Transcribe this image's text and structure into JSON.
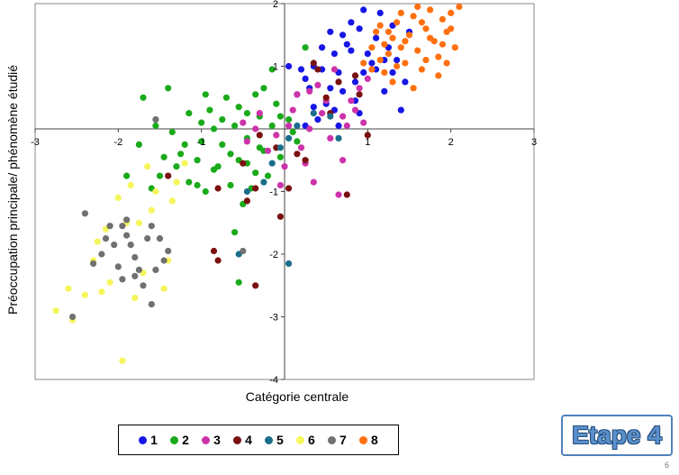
{
  "chart_data": {
    "type": "scatter",
    "xlabel": "Catégorie centrale",
    "ylabel": "Préoccupation principale/ phénomène étudié",
    "xlim": [
      -3,
      3
    ],
    "ylim": [
      -4,
      2
    ],
    "xticks": [
      -3,
      -2,
      -1,
      0,
      1,
      2,
      3
    ],
    "yticks": [
      -4,
      -3,
      -2,
      -1,
      0,
      1,
      2
    ],
    "xtick_labels": [
      "-3",
      "-2",
      "-1",
      "0",
      "1",
      "2",
      "3"
    ],
    "ytick_labels": [
      "-4",
      "-3",
      "-2",
      "-1",
      "0",
      "1",
      "2"
    ],
    "grid": false,
    "legend_position": "bottom",
    "series": [
      {
        "name": "1",
        "color": "#1616e6",
        "points": [
          [
            0.15,
            0.55
          ],
          [
            0.25,
            0.8
          ],
          [
            0.35,
            1.0
          ],
          [
            0.45,
            1.3
          ],
          [
            0.55,
            0.65
          ],
          [
            0.6,
            1.2
          ],
          [
            0.65,
            0.9
          ],
          [
            0.7,
            1.5
          ],
          [
            0.75,
            1.35
          ],
          [
            0.8,
            1.7
          ],
          [
            0.85,
            0.75
          ],
          [
            0.9,
            1.6
          ],
          [
            0.95,
            1.9
          ],
          [
            1.0,
            1.2
          ],
          [
            1.05,
            1.05
          ],
          [
            1.1,
            1.45
          ],
          [
            1.15,
            1.85
          ],
          [
            1.2,
            0.6
          ],
          [
            1.25,
            1.3
          ],
          [
            1.3,
            0.9
          ],
          [
            1.35,
            1.1
          ],
          [
            1.45,
            0.75
          ],
          [
            1.5,
            1.55
          ],
          [
            1.4,
            0.3
          ],
          [
            0.5,
            0.4
          ],
          [
            0.3,
            0.65
          ],
          [
            0.2,
            0.95
          ],
          [
            0.45,
            0.95
          ],
          [
            0.7,
            0.6
          ],
          [
            0.85,
            0.45
          ],
          [
            0.6,
            0.3
          ],
          [
            0.95,
            0.9
          ],
          [
            1.1,
            0.95
          ],
          [
            0.4,
            0.15
          ],
          [
            0.05,
            1.0
          ],
          [
            0.25,
            0.05
          ],
          [
            0.55,
            1.55
          ],
          [
            0.8,
            1.25
          ],
          [
            1.3,
            1.65
          ],
          [
            0.65,
            0.05
          ],
          [
            0.9,
            0.25
          ],
          [
            1.2,
            1.1
          ],
          [
            0.35,
            0.35
          ]
        ]
      },
      {
        "name": "2",
        "color": "#1aaa1a",
        "points": [
          [
            -1.9,
            -0.75
          ],
          [
            -1.6,
            -0.95
          ],
          [
            -1.45,
            -0.45
          ],
          [
            -1.35,
            -0.05
          ],
          [
            -1.25,
            -0.4
          ],
          [
            -1.15,
            -0.85
          ],
          [
            -1.05,
            -0.5
          ],
          [
            -1.0,
            -0.2
          ],
          [
            -0.95,
            -1.0
          ],
          [
            -0.85,
            -0.65
          ],
          [
            -0.75,
            -0.25
          ],
          [
            -0.65,
            -0.9
          ],
          [
            -0.55,
            -0.5
          ],
          [
            -0.45,
            -0.15
          ],
          [
            -0.35,
            -0.7
          ],
          [
            -0.25,
            -0.35
          ],
          [
            -0.15,
            0.05
          ],
          [
            -0.05,
            -0.45
          ],
          [
            0.05,
            0.15
          ],
          [
            0.15,
            -0.2
          ],
          [
            0.25,
            1.3
          ],
          [
            -0.15,
            0.95
          ],
          [
            -0.35,
            0.55
          ],
          [
            -0.55,
            0.35
          ],
          [
            -0.75,
            0.15
          ],
          [
            -0.95,
            0.55
          ],
          [
            -1.15,
            0.25
          ],
          [
            -0.85,
            0.0
          ],
          [
            -0.65,
            -0.4
          ],
          [
            -0.45,
            0.25
          ],
          [
            -1.55,
            0.05
          ],
          [
            -1.75,
            -0.25
          ],
          [
            -0.6,
            -1.65
          ],
          [
            -0.55,
            -2.45
          ],
          [
            -1.05,
            -0.9
          ],
          [
            -1.5,
            -0.75
          ],
          [
            -0.3,
            0.2
          ],
          [
            -0.2,
            -0.75
          ],
          [
            -0.9,
            0.3
          ],
          [
            -1.2,
            -0.25
          ],
          [
            -0.7,
            0.5
          ],
          [
            -0.5,
            -1.2
          ],
          [
            -1.4,
            0.65
          ],
          [
            -0.1,
            0.4
          ],
          [
            -0.4,
            -0.95
          ],
          [
            -0.8,
            -0.6
          ],
          [
            -1.7,
            0.5
          ],
          [
            -0.25,
            0.65
          ],
          [
            0.1,
            -0.05
          ],
          [
            -1.3,
            -0.6
          ],
          [
            -0.6,
            0.05
          ],
          [
            -1.0,
            0.1
          ],
          [
            -0.3,
            -0.3
          ],
          [
            -0.05,
            0.2
          ],
          [
            -0.45,
            -0.55
          ]
        ]
      },
      {
        "name": "3",
        "color": "#cc33aa",
        "points": [
          [
            -0.5,
            0.1
          ],
          [
            -0.3,
            0.25
          ],
          [
            -0.1,
            -0.1
          ],
          [
            0.1,
            0.3
          ],
          [
            0.3,
            0.0
          ],
          [
            0.5,
            0.45
          ],
          [
            0.7,
            0.2
          ],
          [
            0.9,
            0.65
          ],
          [
            0.2,
            -0.3
          ],
          [
            0.4,
            0.7
          ],
          [
            0.6,
            0.95
          ],
          [
            0.8,
            0.45
          ],
          [
            1.0,
            0.8
          ],
          [
            0.0,
            -0.6
          ],
          [
            -0.2,
            -0.35
          ],
          [
            0.25,
            -0.55
          ],
          [
            0.55,
            -0.15
          ],
          [
            0.75,
            0.05
          ],
          [
            0.35,
            -0.85
          ],
          [
            0.65,
            -1.05
          ],
          [
            0.15,
            0.55
          ],
          [
            -0.35,
            0.0
          ],
          [
            0.45,
            0.25
          ],
          [
            0.85,
            0.3
          ],
          [
            0.05,
            0.05
          ],
          [
            -0.05,
            -0.9
          ],
          [
            0.95,
            0.1
          ],
          [
            -0.45,
            -0.2
          ],
          [
            0.3,
            0.6
          ],
          [
            0.7,
            -0.5
          ]
        ]
      },
      {
        "name": "4",
        "color": "#7a1010",
        "points": [
          [
            -1.4,
            -0.75
          ],
          [
            -0.8,
            -0.95
          ],
          [
            -0.85,
            -1.95
          ],
          [
            -0.8,
            -2.1
          ],
          [
            -0.5,
            -0.55
          ],
          [
            -0.45,
            -1.15
          ],
          [
            -0.35,
            -0.95
          ],
          [
            -0.05,
            -1.4
          ],
          [
            0.25,
            -0.5
          ],
          [
            0.55,
            0.25
          ],
          [
            0.75,
            -1.05
          ],
          [
            0.9,
            0.55
          ],
          [
            1.0,
            -0.1
          ],
          [
            0.4,
            0.95
          ],
          [
            0.35,
            1.05
          ],
          [
            -0.35,
            -2.5
          ],
          [
            -0.1,
            -0.3
          ],
          [
            0.15,
            -0.4
          ],
          [
            0.85,
            0.85
          ],
          [
            0.5,
            0.5
          ],
          [
            0.65,
            0.75
          ],
          [
            -0.3,
            -0.1
          ],
          [
            0.05,
            -0.95
          ]
        ]
      },
      {
        "name": "5",
        "color": "#1a6e8c",
        "points": [
          [
            -0.55,
            -2.0
          ],
          [
            0.05,
            -2.15
          ],
          [
            -0.45,
            -1.0
          ],
          [
            -0.25,
            -0.85
          ],
          [
            -0.15,
            -0.55
          ],
          [
            -0.05,
            -0.3
          ],
          [
            0.05,
            -0.15
          ],
          [
            0.15,
            0.05
          ],
          [
            0.35,
            0.25
          ],
          [
            0.55,
            0.2
          ],
          [
            0.65,
            -0.15
          ]
        ]
      },
      {
        "name": "6",
        "color": "#f5f55c",
        "points": [
          [
            -2.75,
            -2.9
          ],
          [
            -2.6,
            -2.55
          ],
          [
            -2.55,
            -3.05
          ],
          [
            -2.4,
            -2.65
          ],
          [
            -2.3,
            -2.1
          ],
          [
            -2.2,
            -2.6
          ],
          [
            -2.1,
            -2.45
          ],
          [
            -2.0,
            -1.1
          ],
          [
            -1.9,
            -1.5
          ],
          [
            -1.8,
            -2.7
          ],
          [
            -1.7,
            -2.3
          ],
          [
            -1.6,
            -1.3
          ],
          [
            -1.5,
            -1.75
          ],
          [
            -1.4,
            -2.1
          ],
          [
            -1.35,
            -1.15
          ],
          [
            -1.3,
            -0.85
          ],
          [
            -1.2,
            -0.55
          ],
          [
            -1.55,
            -1.0
          ],
          [
            -1.85,
            -0.9
          ],
          [
            -1.95,
            -3.7
          ],
          [
            -2.25,
            -1.8
          ],
          [
            -1.65,
            -0.6
          ],
          [
            -1.45,
            -2.55
          ],
          [
            -2.15,
            -1.6
          ],
          [
            -1.75,
            -1.5
          ]
        ]
      },
      {
        "name": "7",
        "color": "#707070",
        "points": [
          [
            -2.4,
            -1.35
          ],
          [
            -2.2,
            -2.0
          ],
          [
            -2.15,
            -1.75
          ],
          [
            -2.1,
            -1.55
          ],
          [
            -2.05,
            -1.85
          ],
          [
            -2.0,
            -2.2
          ],
          [
            -1.95,
            -2.4
          ],
          [
            -1.9,
            -1.7
          ],
          [
            -1.85,
            -1.85
          ],
          [
            -1.8,
            -2.05
          ],
          [
            -1.75,
            -2.25
          ],
          [
            -1.7,
            -2.5
          ],
          [
            -1.65,
            -1.75
          ],
          [
            -1.6,
            -1.55
          ],
          [
            -1.5,
            -1.75
          ],
          [
            -1.45,
            -2.1
          ],
          [
            -1.4,
            -1.95
          ],
          [
            -1.55,
            -2.25
          ],
          [
            -1.95,
            -1.55
          ],
          [
            -2.55,
            -3.0
          ],
          [
            -1.8,
            -2.35
          ],
          [
            -1.55,
            0.15
          ],
          [
            -1.6,
            -2.8
          ],
          [
            -2.3,
            -2.15
          ],
          [
            -1.9,
            -1.45
          ],
          [
            -0.5,
            -1.95
          ]
        ]
      },
      {
        "name": "8",
        "color": "#ff7010",
        "points": [
          [
            0.95,
            1.05
          ],
          [
            1.05,
            1.3
          ],
          [
            1.1,
            1.55
          ],
          [
            1.15,
            1.1
          ],
          [
            1.2,
            0.9
          ],
          [
            1.25,
            1.2
          ],
          [
            1.3,
            1.45
          ],
          [
            1.35,
            1.7
          ],
          [
            1.4,
            1.3
          ],
          [
            1.45,
            1.05
          ],
          [
            1.5,
            1.5
          ],
          [
            1.55,
            1.8
          ],
          [
            1.6,
            1.25
          ],
          [
            1.65,
            0.95
          ],
          [
            1.7,
            1.6
          ],
          [
            1.75,
            1.9
          ],
          [
            1.8,
            1.4
          ],
          [
            1.85,
            1.15
          ],
          [
            1.9,
            1.75
          ],
          [
            1.95,
            1.55
          ],
          [
            2.0,
            1.85
          ],
          [
            2.05,
            1.3
          ],
          [
            2.1,
            1.95
          ],
          [
            1.4,
            1.85
          ],
          [
            1.3,
            0.75
          ],
          [
            1.15,
            1.65
          ],
          [
            1.55,
            0.65
          ],
          [
            1.7,
            1.1
          ],
          [
            1.85,
            0.85
          ],
          [
            1.95,
            1.05
          ],
          [
            2.0,
            1.6
          ],
          [
            1.6,
            1.95
          ],
          [
            1.25,
            1.55
          ],
          [
            1.45,
            1.4
          ],
          [
            1.75,
            1.45
          ],
          [
            1.05,
            0.95
          ],
          [
            1.35,
            1.0
          ],
          [
            1.65,
            1.7
          ],
          [
            1.9,
            1.35
          ],
          [
            1.2,
            1.35
          ]
        ]
      }
    ]
  },
  "footer": {
    "badge_text": "Etape 4",
    "page_number": "6"
  }
}
